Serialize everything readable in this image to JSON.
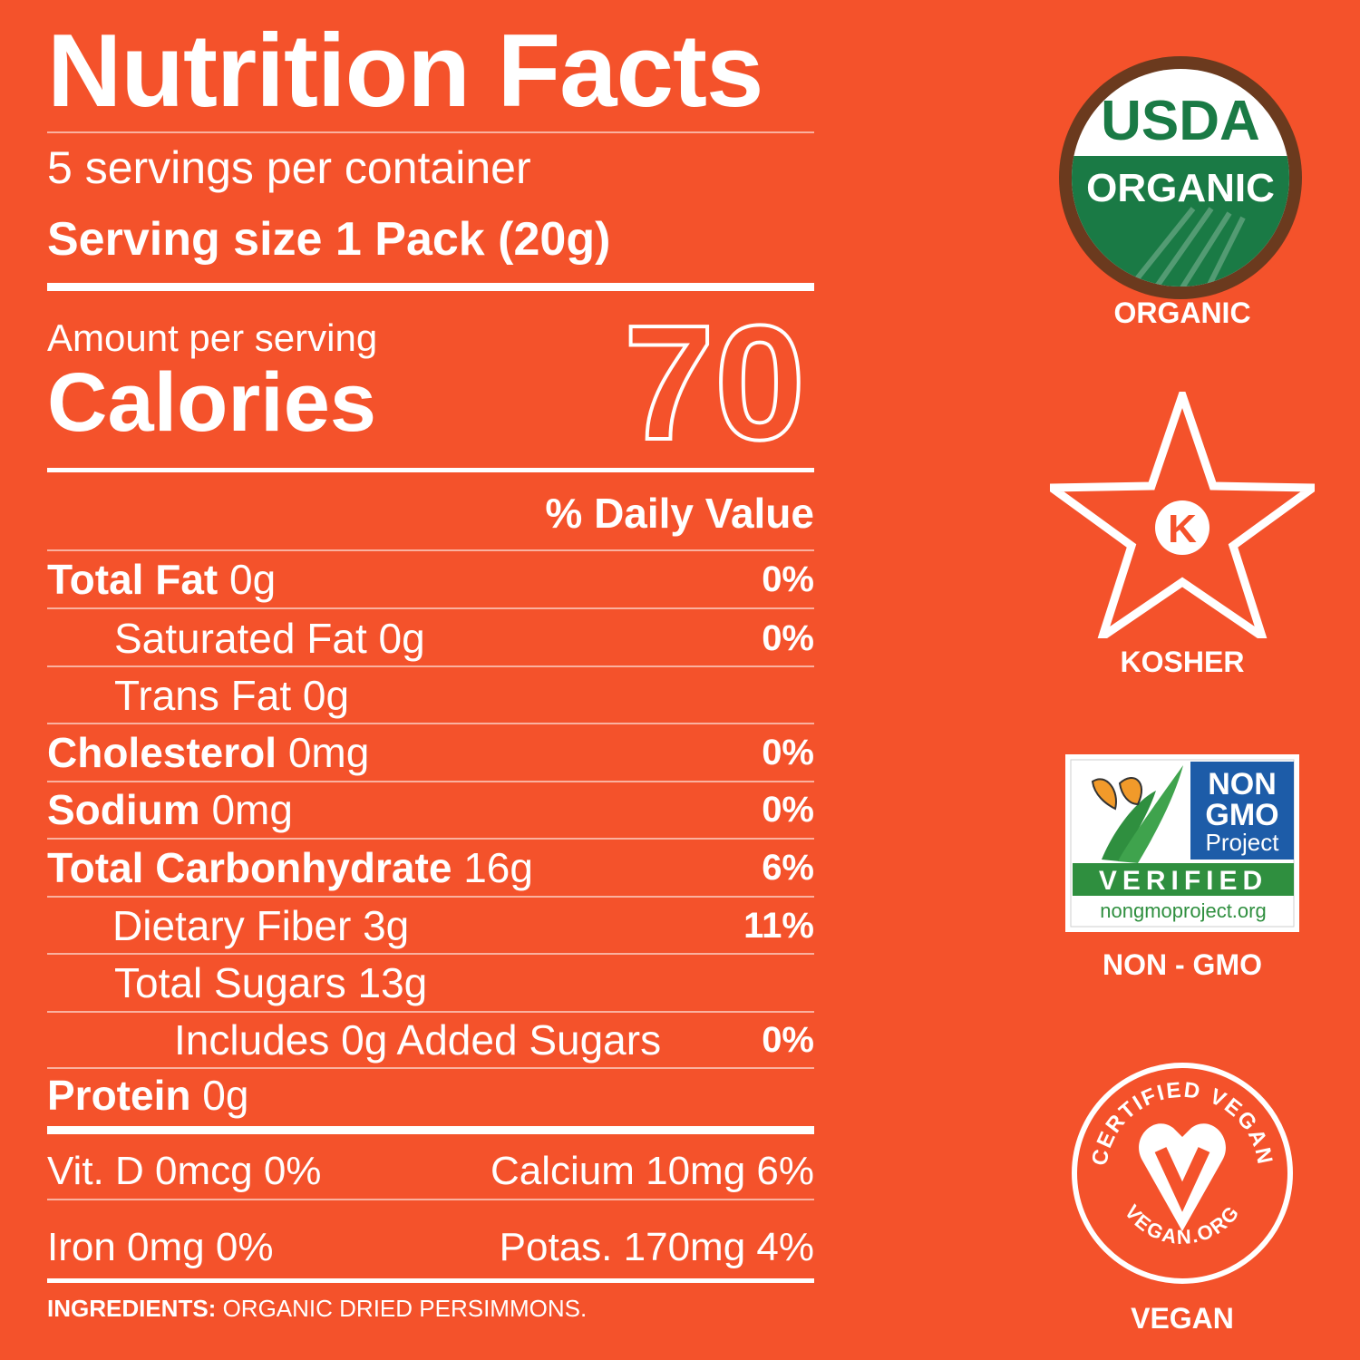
{
  "label": {
    "title": "Nutrition Facts",
    "servings": "5 servings per container",
    "serving_size": "Serving size 1 Pack (20g)",
    "amount_per_serving": "Amount per serving",
    "calories_label": "Calories",
    "calories_value": "70",
    "daily_value_header": "% Daily Value",
    "nutrients": [
      {
        "name": "Total Fat",
        "amount": "0g",
        "dv": "0%"
      },
      {
        "name": "Saturated Fat",
        "amount": "0g",
        "dv": "0%"
      },
      {
        "name": "Trans Fat",
        "amount": "0g",
        "dv": ""
      },
      {
        "name": "Cholesterol",
        "amount": "0mg",
        "dv": "0%"
      },
      {
        "name": "Sodium",
        "amount": "0mg",
        "dv": "0%"
      },
      {
        "name": "Total Carbonhydrate",
        "amount": "16g",
        "dv": "6%"
      },
      {
        "name": "Dietary Fiber",
        "amount": "3g",
        "dv": "11%"
      },
      {
        "name": "Total Sugars",
        "amount": "13g",
        "dv": ""
      },
      {
        "name": "Includes 0g Added Sugars",
        "amount": "",
        "dv": "0%"
      },
      {
        "name": "Protein",
        "amount": "0g",
        "dv": ""
      }
    ],
    "vitamins": {
      "vit_d": "Vit. D 0mcg 0%",
      "calcium": "Calcium 10mg 6%",
      "iron": "Iron 0mg 0%",
      "potassium": "Potas. 170mg 4%"
    },
    "ingredients_label": "INGREDIENTS:",
    "ingredients_text": "ORGANIC DRIED PERSIMMONS."
  },
  "badges": {
    "usda_top": "USDA",
    "usda_bottom": "ORGANIC",
    "organic_caption": "ORGANIC",
    "kosher_letter": "K",
    "kosher_caption": "KOSHER",
    "nongmo_line1": "NON",
    "nongmo_line2": "GMO",
    "nongmo_line3": "Project",
    "nongmo_verified": "VERIFIED",
    "nongmo_url": "nongmoproject.org",
    "nongmo_caption": "NON - GMO",
    "vegan_arc_top": "CERTIFIED VEGAN",
    "vegan_arc_bottom": "VEGAN.ORG",
    "vegan_caption": "VEGAN"
  },
  "colors": {
    "background": "#f4522b",
    "usda_green": "#1a7a45",
    "usda_brown": "#6b3a1e",
    "nongmo_blue": "#1d5ca8",
    "nongmo_green": "#2f8f3f",
    "butterfly_orange": "#f19a2a"
  }
}
